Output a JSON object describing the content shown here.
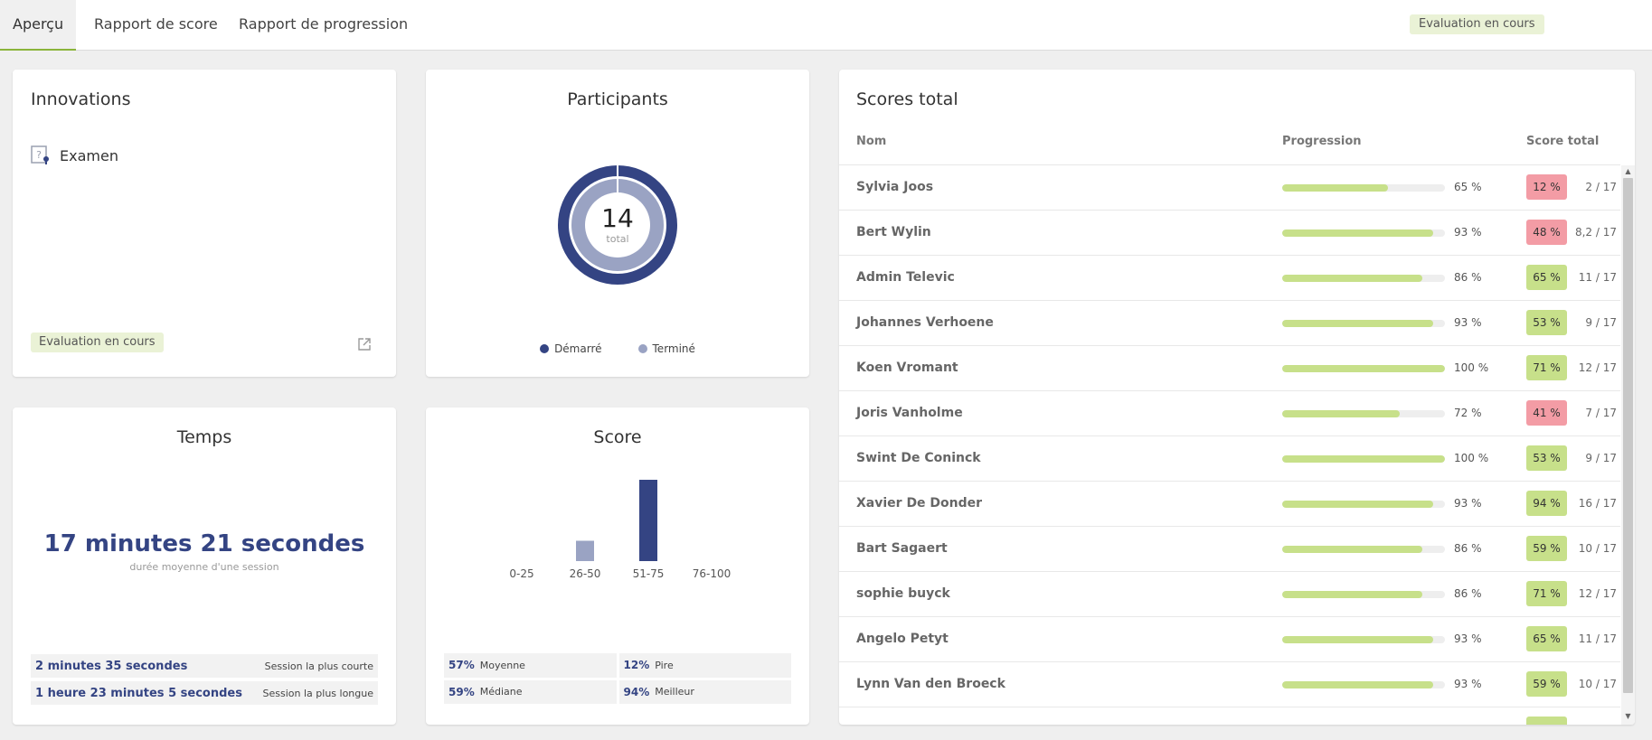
{
  "tabs": [
    {
      "label": "Aperçu"
    },
    {
      "label": "Rapport de score"
    },
    {
      "label": "Rapport de progression"
    }
  ],
  "status_badge": "Evaluation en cours",
  "innovations": {
    "title": "Innovations",
    "item_label": "Examen",
    "status_badge": "Evaluation en cours"
  },
  "participants": {
    "title": "Participants",
    "total": "14",
    "total_label": "total",
    "legend": [
      {
        "label": "Démarré",
        "color": "#344483"
      },
      {
        "label": "Terminé",
        "color": "#9aa3c3"
      }
    ]
  },
  "temps": {
    "title": "Temps",
    "average": "17 minutes 21 secondes",
    "average_label": "durée moyenne d'une session",
    "shortest_value": "2 minutes 35 secondes",
    "shortest_label": "Session la plus courte",
    "longest_value": "1 heure 23 minutes 5 secondes",
    "longest_label": "Session la plus longue"
  },
  "score": {
    "title": "Score",
    "stats": {
      "mean_value": "57%",
      "mean_label": "Moyenne",
      "worst_value": "12%",
      "worst_label": "Pire",
      "median_value": "59%",
      "median_label": "Médiane",
      "best_value": "94%",
      "best_label": "Meilleur"
    }
  },
  "chart_data": {
    "type": "bar",
    "categories": [
      "0-25",
      "26-50",
      "51-75",
      "76-100"
    ],
    "values": [
      0,
      2,
      8,
      0
    ],
    "colors": [
      "#9aa3c3",
      "#9aa3c3",
      "#344483",
      "#344483"
    ],
    "title": "Score"
  },
  "scores_total": {
    "title": "Scores total",
    "columns": {
      "name": "Nom",
      "progress": "Progression",
      "score": "Score total"
    },
    "rows": [
      {
        "name": "Sylvia Joos",
        "progress": 65,
        "progress_label": "65 %",
        "score": "12 %",
        "fraction": "2 / 17",
        "status": "fail"
      },
      {
        "name": "Bert Wylin",
        "progress": 93,
        "progress_label": "93 %",
        "score": "48 %",
        "fraction": "8,2 / 17",
        "status": "fail"
      },
      {
        "name": "Admin Televic",
        "progress": 86,
        "progress_label": "86 %",
        "score": "65 %",
        "fraction": "11 / 17",
        "status": "pass"
      },
      {
        "name": "Johannes Verhoene",
        "progress": 93,
        "progress_label": "93 %",
        "score": "53 %",
        "fraction": "9 / 17",
        "status": "pass"
      },
      {
        "name": "Koen Vromant",
        "progress": 100,
        "progress_label": "100 %",
        "score": "71 %",
        "fraction": "12 / 17",
        "status": "pass"
      },
      {
        "name": "Joris Vanholme",
        "progress": 72,
        "progress_label": "72 %",
        "score": "41 %",
        "fraction": "7 / 17",
        "status": "fail"
      },
      {
        "name": "Swint De Coninck",
        "progress": 100,
        "progress_label": "100 %",
        "score": "53 %",
        "fraction": "9 / 17",
        "status": "pass"
      },
      {
        "name": "Xavier De Donder",
        "progress": 93,
        "progress_label": "93 %",
        "score": "94 %",
        "fraction": "16 / 17",
        "status": "pass"
      },
      {
        "name": "Bart Sagaert",
        "progress": 86,
        "progress_label": "86 %",
        "score": "59 %",
        "fraction": "10 / 17",
        "status": "pass"
      },
      {
        "name": "sophie buyck",
        "progress": 86,
        "progress_label": "86 %",
        "score": "71 %",
        "fraction": "12 / 17",
        "status": "pass"
      },
      {
        "name": "Angelo Petyt",
        "progress": 93,
        "progress_label": "93 %",
        "score": "65 %",
        "fraction": "11 / 17",
        "status": "pass"
      },
      {
        "name": "Lynn Van den Broeck",
        "progress": 93,
        "progress_label": "93 %",
        "score": "59 %",
        "fraction": "10 / 17",
        "status": "pass"
      },
      {
        "name": "",
        "progress": 0,
        "progress_label": "",
        "score": "",
        "fraction": "",
        "status": "pass"
      }
    ]
  },
  "colors": {
    "accent": "#344483",
    "accent_light": "#9aa3c3",
    "progress": "#c7e08a",
    "pass_badge": "#c7e08a",
    "fail_badge": "#f39ca5",
    "status_badge_bg": "#eaf2d6"
  }
}
